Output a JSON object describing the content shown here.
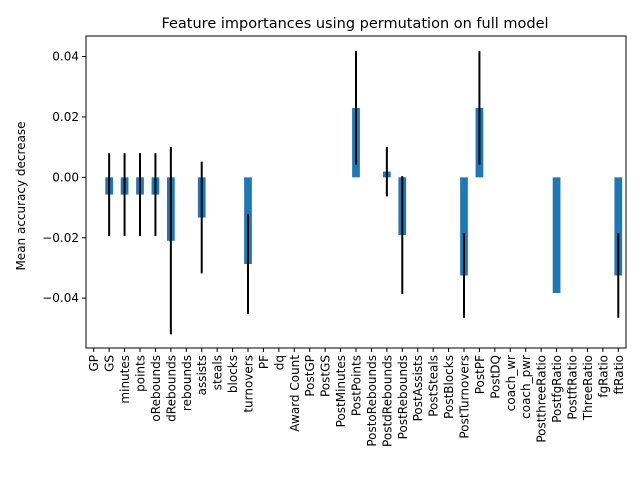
{
  "chart_data": {
    "type": "bar",
    "title": "Feature importances using permutation on full model",
    "xlabel": "",
    "ylabel": "Mean accuracy decrease",
    "ylim": [
      -0.0565,
      0.0468
    ],
    "yticks": [
      -0.04,
      -0.02,
      0.0,
      0.02,
      0.04
    ],
    "ytick_labels": [
      "−0.04",
      "−0.02",
      "0.00",
      "0.02",
      "0.04"
    ],
    "bar_color": "#1f77b4",
    "error_color": "#000000",
    "grid": false,
    "legend": "none",
    "categories": [
      "GP",
      "GS",
      "minutes",
      "points",
      "oRebounds",
      "dRebounds",
      "rebounds",
      "assists",
      "steals",
      "blocks",
      "turnovers",
      "PF",
      "dq",
      "Award Count",
      "PostGP",
      "PostGS",
      "PostMinutes",
      "PostPoints",
      "PostoRebounds",
      "PostdRebounds",
      "PostRebounds",
      "PostAssists",
      "PostSteals",
      "PostBlocks",
      "PostTurnovers",
      "PostPF",
      "PostDQ",
      "coach_wr",
      "coach_pwr",
      "PostthreeRatio",
      "PostfgRatio",
      "PostftRatio",
      "ThreeRatio",
      "fgRatio",
      "ftRatio"
    ],
    "values": [
      0,
      -0.0057,
      -0.0057,
      -0.0057,
      -0.0057,
      -0.021,
      0,
      -0.0133,
      0,
      0,
      -0.0287,
      0,
      0,
      0,
      0,
      0,
      0,
      0.023,
      0,
      0.0019,
      -0.0191,
      0,
      0,
      0,
      -0.0325,
      0.023,
      0,
      0,
      0,
      0,
      -0.0383,
      0,
      0,
      0,
      -0.0325
    ],
    "errors": [
      0,
      0.0137,
      0.0137,
      0.0137,
      0.0137,
      0.031,
      0,
      0.0185,
      0,
      0,
      0.0165,
      0,
      0,
      0,
      0,
      0,
      0,
      0.0188,
      0,
      0.0082,
      0.0195,
      0,
      0,
      0,
      0.014,
      0.0188,
      0,
      0,
      0,
      0,
      0,
      0,
      0,
      0,
      0.014
    ]
  }
}
